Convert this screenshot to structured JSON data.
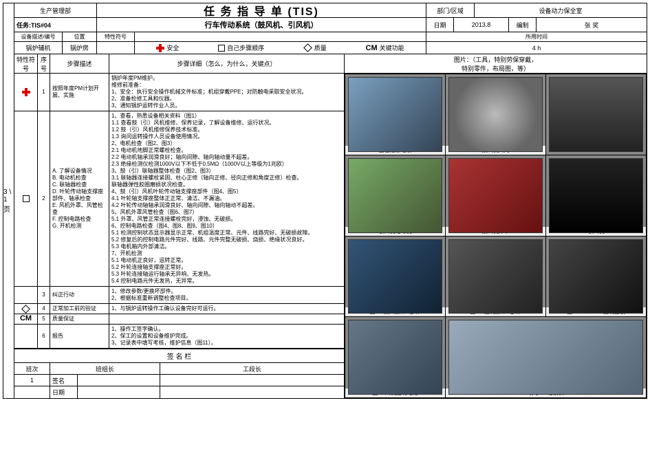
{
  "page_tab": "3\n\\\n1\n页",
  "header": {
    "dept": "生产管理部",
    "title": "任 务 指 导 单 (TIS)",
    "area_label": "部门/区域",
    "area_value": "设备动力保全室",
    "task_label": "任务:TIS#04",
    "task_name": "行车传动系统（鼓风机、引风机）",
    "date_label": "日期",
    "date_value": "2013.8",
    "author_label": "编制",
    "author_value": "张  奖",
    "equip_label": "设备描述/编号",
    "loc_label": "位置",
    "char_label": "特性符号",
    "time_label": "所用时间",
    "equip_value": "锅炉辅机",
    "loc_value": "锅炉房",
    "time_value": "4 h"
  },
  "legend": {
    "safety": "安全",
    "critical": "自己步骤顺序",
    "quality": "质量",
    "cm": "CM",
    "cm_label": "关键功能"
  },
  "cols": {
    "sym": "特性符号",
    "num": "序号",
    "desc": "步骤描述",
    "det": "步骤详细（怎么，为什么，关键点）",
    "photo": "图片：（工具，特别劳保穿戴，\n特别零件，布局图，等）"
  },
  "steps": [
    {
      "sym": "plus",
      "num": "1",
      "desc": "按照年度PM计划开展、实施",
      "det": "锅炉年度PM维护。\n维修前准备：\n1、安全：执行安全操作机械文件标准；机组穿戴PPE；对防触电采取安全状况。\n2、准备检修工具和仪器。\n3、通知锅炉运转作业人员。"
    },
    {
      "sym": "square",
      "num": "2",
      "desc": "A. 了解设备情况\nB. 电动机检查\nC. 联轴器检查\nD. 叶轮传动轴支撑座部件、轴承检查\nE. 风机外罩、风管检查\nF. 控制电路检查\nG. 开机检测",
      "det": "1、查看，熟悉设备相关资料（图1）\n1.1 查看鼓（引）风机维修、保养记录，了解设备维修、运行状况。\n1.2 鼓（引）风机维修保养技术标准。\n1.3 询问运转操作人员设备使用情况。\n2、电机检查（图2、图3）\n2.1 电动机地脚正常螺栓检查。\n2.2 电动机轴承润滑良好；轴向间隙、轴向轴动量不超差。\n2.3 绝缘检测仪检测1000V以下不低于0.5MΩ（1000V以上等级为1兆欧）\n3、鼓（引）联轴器整体检查（图2、图3）\n3.1 联轴器连接螺栓紧固、柱心正修（轴向正修、径向正修和角度正修）检查。\n联轴器弹性胶圈磨损状况检查。\n4、鼓（引）风机叶轮传动轴支撑座部件（图4、图5）\n4.1 叶轮轴支撑座整体正正常、清洁、不漏油。\n4.2 叶轮传动轴轴承润滑良好、轴向间隙、轴向轴动不超差。\n5、风机外罩风管检查（图6、图7）\n5.1 外罩、风管正常连接螺栓完好，浸蚀、无破损。\n6、控制电路检查（图4、图8、图9、图10）\n5.1 检测控制状态显示器显示正常、机组温度正常、元件、线路完好、无破损故障。\n5.2 修复后的控制电路元件完好、线路、元件完整无破损、烧损、绝缘状况良好。\n5.3 电机箱内外部清洁。\n7、开机检测\n5.1 电动机正良好，运转正常。\n5.2 叶轮连接轴支撑座正常好。\n5.3 叶轮连接轴运行轴承无异响、无发热。\n5.4 控制电路元件无发热，无异常。"
    },
    {
      "sym": "",
      "num": "3",
      "desc": "纠正行动",
      "det": "1、修改参数/更换坏部件。\n2、根据标准重新调整检查项目。"
    },
    {
      "sym": "diamond",
      "num": "4",
      "desc": "正常加工前的验证",
      "det": "1、与锅炉运转操作工确认设备完好可运行。"
    },
    {
      "sym": "cm",
      "num": "5",
      "desc": "质量保证",
      "det": ""
    },
    {
      "sym": "",
      "num": "6",
      "desc": "报告",
      "det": "1、操作工签字确认。\n2、保工的设置和设备维护完成。\n3、记录表中填写考核，维护信息（图11）。"
    }
  ],
  "photos": [
    {
      "cap": "查看维修记录"
    },
    {
      "cap": "鼓风机风门"
    },
    {
      "cap": ""
    },
    {
      "cap": "引风机电动机"
    },
    {
      "cap": "鼓风机外罩"
    },
    {
      "cap": "引风机"
    },
    {
      "cap": "图6—鼓风加工zi部件"
    },
    {
      "cap": "图7—控制加工zi部件"
    },
    {
      "cap": "图8—siemens 控制面板"
    },
    {
      "cap": "图11 风机控制电路"
    },
    {
      "cap": "填写PM记录表"
    }
  ],
  "sig": {
    "title": "签  名  栏",
    "shift": "班次",
    "shift_val": "1",
    "leader": "班组长",
    "foreman": "工段长",
    "name": "签名",
    "date": "日期"
  }
}
